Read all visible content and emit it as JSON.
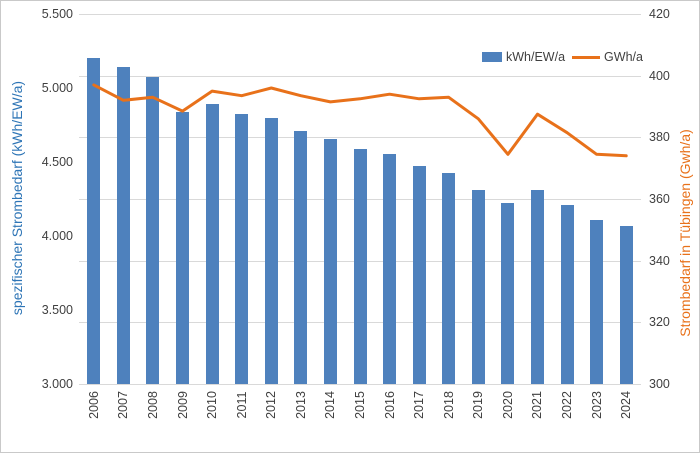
{
  "window": {
    "background": "#FFFFFF",
    "border_color": "#C9C9C9"
  },
  "legend": {
    "items": [
      {
        "label": "kWh/EW/a",
        "swatch": "bar",
        "color": "#4E81BD"
      },
      {
        "label": "GWh/a",
        "swatch": "line",
        "color": "#E8711A"
      }
    ]
  },
  "chart_data": {
    "type": "combo-bar-line",
    "title": "",
    "categories": [
      "2006",
      "2007",
      "2008",
      "2009",
      "2010",
      "2011",
      "2012",
      "2013",
      "2014",
      "2015",
      "2016",
      "2017",
      "2018",
      "2019",
      "2020",
      "2021",
      "2022",
      "2023",
      "2024"
    ],
    "series": [
      {
        "name": "kWh/EW/a",
        "type": "bar",
        "axis": "left",
        "color": "#4E81BD",
        "values": [
          5200,
          5145,
          5075,
          4840,
          4890,
          4825,
          4795,
          4710,
          4655,
          4590,
          4555,
          4475,
          4425,
          4310,
          4225,
          4310,
          4210,
          4110,
          4070
        ]
      },
      {
        "name": "GWh/a",
        "type": "line",
        "axis": "right",
        "color": "#E8711A",
        "values": [
          397,
          392,
          393,
          388.5,
          395,
          393.5,
          396,
          393.5,
          391.5,
          392.5,
          394,
          392.5,
          393,
          386,
          374.5,
          387.5,
          381.5,
          374.5,
          374
        ]
      }
    ],
    "left_axis": {
      "title": "spezifischer Strombedarf (kWh/EW/a)",
      "title_color": "#2E75B6",
      "min": 3000,
      "max": 5500,
      "tick_step": 500,
      "tick_labels": [
        "5.500",
        "5.000",
        "4.500",
        "4.000",
        "3.500",
        "3.000"
      ]
    },
    "right_axis": {
      "title": "Strombedarf in Tübingen (Gwh/a)",
      "title_color": "#E8711A",
      "min": 300,
      "max": 420,
      "tick_step": 20,
      "tick_labels": [
        "420",
        "400",
        "380",
        "360",
        "340",
        "320",
        "300"
      ]
    },
    "grid": true,
    "gridline_color": "#D9D9D9",
    "tick_color": "#404040",
    "legend_position": "top-right"
  }
}
